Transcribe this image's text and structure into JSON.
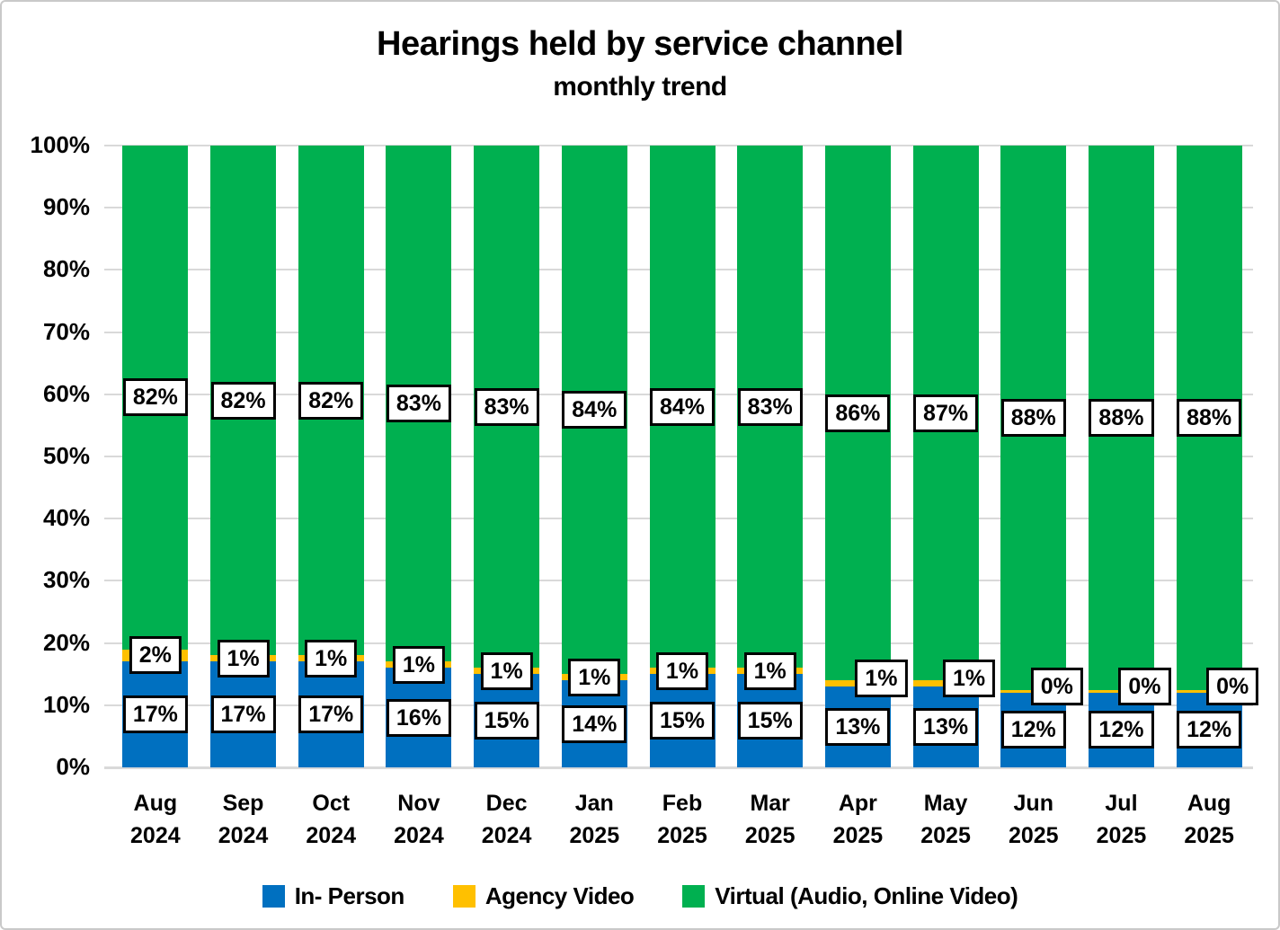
{
  "chart_data": {
    "type": "bar",
    "stacked": true,
    "percent_stacked": true,
    "title": "Hearings held by service channel",
    "subtitle": "monthly trend",
    "categories": [
      "Aug 2024",
      "Sep 2024",
      "Oct 2024",
      "Nov 2024",
      "Dec 2024",
      "Jan 2025",
      "Feb 2025",
      "Mar 2025",
      "Apr 2025",
      "May 2025",
      "Jun 2025",
      "Jul 2025",
      "Aug 2025"
    ],
    "series": [
      {
        "name": "In- Person",
        "color": "#0070C0",
        "values": [
          17,
          17,
          17,
          16,
          15,
          14,
          15,
          15,
          13,
          13,
          12,
          12,
          12
        ]
      },
      {
        "name": "Agency Video",
        "color": "#FFC000",
        "values": [
          2,
          1,
          1,
          1,
          1,
          1,
          1,
          1,
          1,
          1,
          0,
          0,
          0
        ]
      },
      {
        "name": "Virtual (Audio, Online Video)",
        "color": "#00B050",
        "values": [
          82,
          82,
          82,
          83,
          83,
          84,
          84,
          83,
          86,
          87,
          88,
          88,
          88
        ]
      }
    ],
    "value_suffix": "%",
    "ylim": [
      0,
      100
    ],
    "ytick_step": 10,
    "ytick_labels": [
      "0%",
      "10%",
      "20%",
      "30%",
      "40%",
      "50%",
      "60%",
      "70%",
      "80%",
      "90%",
      "100%"
    ],
    "grid": true,
    "gridline_color": "#D9D9D9",
    "legend_position": "bottom",
    "data_label_box": {
      "background": "#FFFFFF",
      "border": "#000000"
    }
  }
}
